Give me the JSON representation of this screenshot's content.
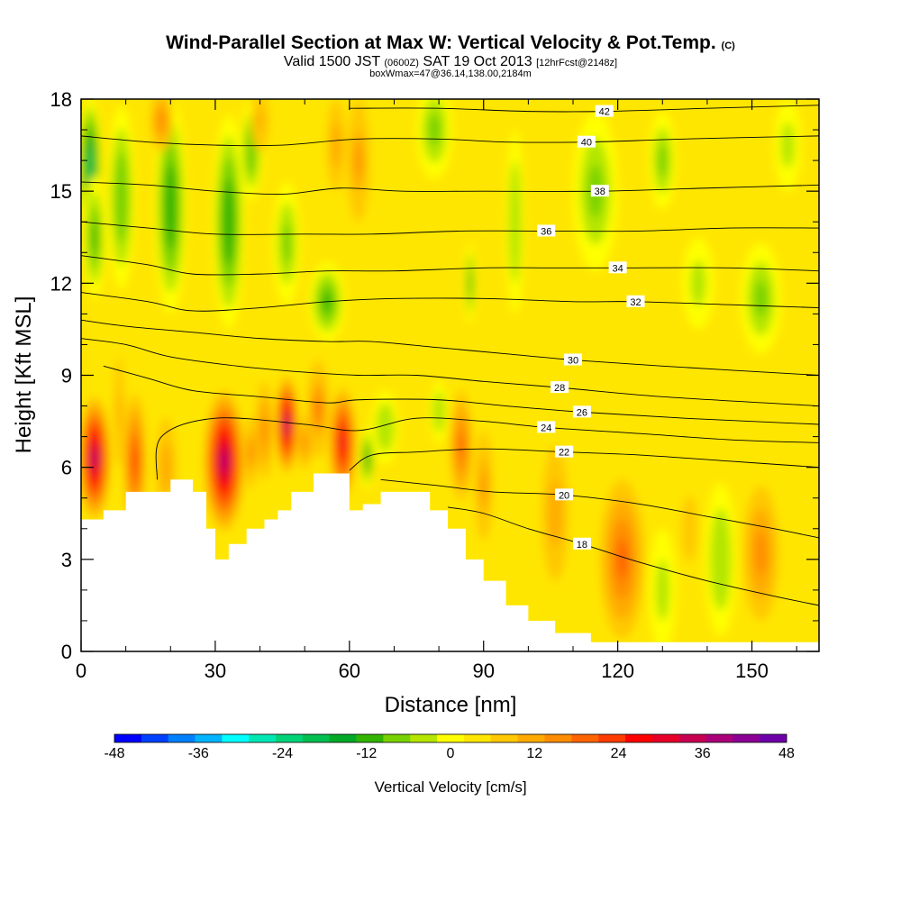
{
  "title": {
    "main": "Wind-Parallel Section at Max W: Vertical Velocity & Pot.Temp.",
    "copyright": "(C)",
    "valid": "Valid 1500 JST",
    "zulu": "(0600Z)",
    "date": "SAT 19 Oct 2013",
    "forecast": "[12hrFcst@2148z]",
    "box": "boxWmax=47@36.14,138.00,2184m"
  },
  "chart_data": {
    "type": "heatmap",
    "xlabel": "Distance [nm]",
    "ylabel": "Height [Kft MSL]",
    "xlim": [
      0,
      165
    ],
    "ylim": [
      0,
      18
    ],
    "xticks": [
      0,
      30,
      60,
      90,
      120,
      150
    ],
    "yticks": [
      0,
      3,
      6,
      9,
      12,
      15,
      18
    ],
    "colorbar": {
      "label": "Vertical Velocity [cm/s]",
      "ticks": [
        -48,
        -36,
        -24,
        -12,
        0,
        12,
        24,
        36,
        48
      ],
      "colors": [
        "#0000ff",
        "#0040ff",
        "#0080ff",
        "#00b4ff",
        "#00ffff",
        "#00e6b4",
        "#00d278",
        "#00be50",
        "#00aa28",
        "#32b400",
        "#78d200",
        "#b4e600",
        "#ffff00",
        "#ffe600",
        "#ffc800",
        "#ffaa00",
        "#ff8c00",
        "#ff6400",
        "#ff3c00",
        "#ff0000",
        "#e60028",
        "#c80050",
        "#aa0078",
        "#8c0096",
        "#6e00aa"
      ]
    },
    "terrain": [
      [
        0,
        4.3
      ],
      [
        5,
        4.6
      ],
      [
        10,
        5.2
      ],
      [
        20,
        5.6
      ],
      [
        25,
        5.2
      ],
      [
        28,
        4.0
      ],
      [
        30,
        3.0
      ],
      [
        33,
        3.5
      ],
      [
        37,
        4.0
      ],
      [
        41,
        4.3
      ],
      [
        44,
        4.6
      ],
      [
        47,
        5.2
      ],
      [
        52,
        5.8
      ],
      [
        56,
        5.8
      ],
      [
        60,
        4.6
      ],
      [
        63,
        4.8
      ],
      [
        67,
        5.2
      ],
      [
        73,
        5.2
      ],
      [
        78,
        4.6
      ],
      [
        82,
        4.0
      ],
      [
        86,
        3.0
      ],
      [
        90,
        2.3
      ],
      [
        95,
        1.5
      ],
      [
        100,
        1.0
      ],
      [
        106,
        0.6
      ],
      [
        114,
        0.3
      ],
      [
        125,
        0.3
      ],
      [
        145,
        0.3
      ],
      [
        160,
        0.3
      ],
      [
        165,
        0.3
      ]
    ],
    "theta_contours": [
      {
        "label": "18",
        "label_at": [
          112,
          3.5
        ],
        "points": [
          [
            82,
            4.7
          ],
          [
            90,
            4.5
          ],
          [
            100,
            4.0
          ],
          [
            112,
            3.5
          ],
          [
            125,
            2.9
          ],
          [
            140,
            2.3
          ],
          [
            155,
            1.8
          ],
          [
            165,
            1.5
          ]
        ]
      },
      {
        "label": "20",
        "label_at": [
          108,
          5.1
        ],
        "points": [
          [
            67,
            5.6
          ],
          [
            80,
            5.4
          ],
          [
            92,
            5.2
          ],
          [
            108,
            5.1
          ],
          [
            125,
            4.8
          ],
          [
            140,
            4.4
          ],
          [
            155,
            4.0
          ],
          [
            165,
            3.7
          ]
        ]
      },
      {
        "label": "22",
        "label_at": [
          108,
          6.5
        ],
        "points": [
          [
            60,
            5.9
          ],
          [
            65,
            6.4
          ],
          [
            75,
            6.5
          ],
          [
            90,
            6.6
          ],
          [
            108,
            6.5
          ],
          [
            125,
            6.4
          ],
          [
            145,
            6.2
          ],
          [
            165,
            6.0
          ]
        ]
      },
      {
        "label": "24",
        "label_at": [
          104,
          7.3
        ],
        "points": [
          [
            17,
            5.6
          ],
          [
            18,
            7.0
          ],
          [
            30,
            7.6
          ],
          [
            50,
            7.4
          ],
          [
            62,
            7.2
          ],
          [
            75,
            7.6
          ],
          [
            90,
            7.5
          ],
          [
            104,
            7.3
          ],
          [
            125,
            7.1
          ],
          [
            145,
            6.9
          ],
          [
            165,
            6.8
          ]
        ]
      },
      {
        "label": "26",
        "label_at": [
          112,
          7.8
        ],
        "points": [
          [
            5,
            9.3
          ],
          [
            15,
            8.9
          ],
          [
            25,
            8.5
          ],
          [
            40,
            8.3
          ],
          [
            55,
            8.1
          ],
          [
            62,
            8.2
          ],
          [
            80,
            8.2
          ],
          [
            95,
            8.0
          ],
          [
            112,
            7.8
          ],
          [
            135,
            7.6
          ],
          [
            165,
            7.4
          ]
        ]
      },
      {
        "label": "28",
        "label_at": [
          107,
          8.6
        ],
        "points": [
          [
            0,
            10.2
          ],
          [
            10,
            10.0
          ],
          [
            20,
            9.6
          ],
          [
            35,
            9.3
          ],
          [
            50,
            9.1
          ],
          [
            62,
            9.0
          ],
          [
            75,
            9.0
          ],
          [
            90,
            8.8
          ],
          [
            107,
            8.6
          ],
          [
            130,
            8.3
          ],
          [
            165,
            8.0
          ]
        ]
      },
      {
        "label": "30",
        "label_at": [
          110,
          9.5
        ],
        "points": [
          [
            0,
            10.8
          ],
          [
            10,
            10.6
          ],
          [
            25,
            10.4
          ],
          [
            40,
            10.2
          ],
          [
            55,
            10.1
          ],
          [
            65,
            10.1
          ],
          [
            80,
            9.9
          ],
          [
            95,
            9.7
          ],
          [
            110,
            9.5
          ],
          [
            130,
            9.3
          ],
          [
            165,
            9.0
          ]
        ]
      },
      {
        "label": "32",
        "label_at": [
          124,
          11.4
        ],
        "points": [
          [
            0,
            11.7
          ],
          [
            15,
            11.4
          ],
          [
            25,
            11.1
          ],
          [
            40,
            11.2
          ],
          [
            55,
            11.4
          ],
          [
            70,
            11.5
          ],
          [
            90,
            11.5
          ],
          [
            110,
            11.4
          ],
          [
            124,
            11.4
          ],
          [
            145,
            11.3
          ],
          [
            165,
            11.2
          ]
        ]
      },
      {
        "label": "34",
        "label_at": [
          120,
          12.5
        ],
        "points": [
          [
            0,
            12.9
          ],
          [
            15,
            12.6
          ],
          [
            25,
            12.3
          ],
          [
            40,
            12.3
          ],
          [
            55,
            12.4
          ],
          [
            70,
            12.4
          ],
          [
            90,
            12.5
          ],
          [
            105,
            12.5
          ],
          [
            120,
            12.5
          ],
          [
            145,
            12.5
          ],
          [
            165,
            12.4
          ]
        ]
      },
      {
        "label": "36",
        "label_at": [
          104,
          13.7
        ],
        "points": [
          [
            0,
            14.0
          ],
          [
            15,
            13.8
          ],
          [
            30,
            13.6
          ],
          [
            50,
            13.6
          ],
          [
            65,
            13.6
          ],
          [
            85,
            13.7
          ],
          [
            104,
            13.7
          ],
          [
            125,
            13.7
          ],
          [
            145,
            13.8
          ],
          [
            165,
            13.8
          ]
        ]
      },
      {
        "label": "38",
        "label_at": [
          116,
          15.0
        ],
        "points": [
          [
            0,
            15.3
          ],
          [
            15,
            15.2
          ],
          [
            30,
            15.0
          ],
          [
            45,
            14.9
          ],
          [
            58,
            15.1
          ],
          [
            72,
            15.0
          ],
          [
            90,
            15.0
          ],
          [
            116,
            15.0
          ],
          [
            140,
            15.1
          ],
          [
            165,
            15.2
          ]
        ]
      },
      {
        "label": "40",
        "label_at": [
          113,
          16.6
        ],
        "points": [
          [
            0,
            16.8
          ],
          [
            15,
            16.6
          ],
          [
            30,
            16.5
          ],
          [
            45,
            16.5
          ],
          [
            62,
            16.7
          ],
          [
            80,
            16.7
          ],
          [
            95,
            16.6
          ],
          [
            113,
            16.6
          ],
          [
            135,
            16.7
          ],
          [
            165,
            16.8
          ]
        ]
      },
      {
        "label": "42",
        "label_at": [
          117,
          17.6
        ],
        "points": [
          [
            60,
            17.7
          ],
          [
            80,
            17.7
          ],
          [
            100,
            17.6
          ],
          [
            117,
            17.6
          ],
          [
            140,
            17.7
          ],
          [
            165,
            17.8
          ]
        ]
      }
    ],
    "w_cells": [
      {
        "cx": 3,
        "cy": 6.3,
        "rx": 3.5,
        "ry": 2.0,
        "w": 38
      },
      {
        "cx": 8.5,
        "cy": 7.8,
        "rx": 1.2,
        "ry": 1.8,
        "w": 12
      },
      {
        "cx": 12,
        "cy": 6.2,
        "rx": 2.5,
        "ry": 2.2,
        "w": 22
      },
      {
        "cx": 19,
        "cy": 6.0,
        "rx": 2.3,
        "ry": 1.6,
        "w": 10
      },
      {
        "cx": 32,
        "cy": 6.2,
        "rx": 4.5,
        "ry": 2.3,
        "w": 38
      },
      {
        "cx": 38,
        "cy": 6.5,
        "rx": 1.4,
        "ry": 1.2,
        "w": 20
      },
      {
        "cx": 41,
        "cy": 7.2,
        "rx": 2.0,
        "ry": 1.6,
        "w": 14
      },
      {
        "cx": 46,
        "cy": 7.4,
        "rx": 2.5,
        "ry": 1.6,
        "w": 38
      },
      {
        "cx": 50,
        "cy": 6.8,
        "rx": 1.5,
        "ry": 0.9,
        "w": 14
      },
      {
        "cx": 53,
        "cy": 7.9,
        "rx": 2.5,
        "ry": 1.6,
        "w": 20
      },
      {
        "cx": 58.5,
        "cy": 6.8,
        "rx": 3.0,
        "ry": 1.8,
        "w": 30
      },
      {
        "cx": 85,
        "cy": 6.7,
        "rx": 2.5,
        "ry": 1.8,
        "w": 18
      },
      {
        "cx": 90,
        "cy": 5.4,
        "rx": 2.0,
        "ry": 1.8,
        "w": 16
      },
      {
        "cx": 106,
        "cy": 4.5,
        "rx": 3.0,
        "ry": 2.2,
        "w": 10
      },
      {
        "cx": 121,
        "cy": 3.0,
        "rx": 5.0,
        "ry": 2.6,
        "w": 18
      },
      {
        "cx": 136,
        "cy": 4.0,
        "rx": 3.5,
        "ry": 2.2,
        "w": 8
      },
      {
        "cx": 152,
        "cy": 3.2,
        "rx": 4.0,
        "ry": 2.2,
        "w": 14
      },
      {
        "cx": 2,
        "cy": 15.8,
        "rx": 2.5,
        "ry": 2.3,
        "w": -22
      },
      {
        "cx": 3,
        "cy": 13.5,
        "rx": 2.5,
        "ry": 2.0,
        "w": -12
      },
      {
        "cx": 9,
        "cy": 14.8,
        "rx": 3.0,
        "ry": 3.0,
        "w": -10
      },
      {
        "cx": 20,
        "cy": 14.5,
        "rx": 3.5,
        "ry": 3.5,
        "w": -14
      },
      {
        "cx": 33,
        "cy": 14.0,
        "rx": 3.5,
        "ry": 3.5,
        "w": -14
      },
      {
        "cx": 38,
        "cy": 16.3,
        "rx": 2.5,
        "ry": 1.6,
        "w": -10
      },
      {
        "cx": 55,
        "cy": 11.4,
        "rx": 4.0,
        "ry": 1.3,
        "w": -12
      },
      {
        "cx": 46,
        "cy": 13.3,
        "rx": 3.0,
        "ry": 2.0,
        "w": -8
      },
      {
        "cx": 64,
        "cy": 6.3,
        "rx": 1.5,
        "ry": 1.0,
        "w": -14
      },
      {
        "cx": 68,
        "cy": 7.3,
        "rx": 3.0,
        "ry": 1.2,
        "w": -6
      },
      {
        "cx": 87,
        "cy": 12.0,
        "rx": 1.1,
        "ry": 1.3,
        "w": -12
      },
      {
        "cx": 79,
        "cy": 17.0,
        "rx": 4.0,
        "ry": 1.6,
        "w": -8
      },
      {
        "cx": 97,
        "cy": 14.0,
        "rx": 2.0,
        "ry": 3.0,
        "w": -6
      },
      {
        "cx": 115,
        "cy": 15.0,
        "rx": 5.0,
        "ry": 2.6,
        "w": -7
      },
      {
        "cx": 130,
        "cy": 16.0,
        "rx": 3.0,
        "ry": 1.6,
        "w": -7
      },
      {
        "cx": 138,
        "cy": 12.0,
        "rx": 3.5,
        "ry": 1.5,
        "w": -4
      },
      {
        "cx": 152,
        "cy": 11.5,
        "rx": 4.5,
        "ry": 1.8,
        "w": -9
      },
      {
        "cx": 158,
        "cy": 16.5,
        "rx": 3.0,
        "ry": 1.5,
        "w": -5
      },
      {
        "cx": 95,
        "cy": 8.3,
        "rx": 8.0,
        "ry": 1.0,
        "w": 4
      },
      {
        "cx": 62,
        "cy": 16.0,
        "rx": 2.5,
        "ry": 2.0,
        "w": 16
      },
      {
        "cx": 57,
        "cy": 16.5,
        "rx": 2.0,
        "ry": 1.5,
        "w": 10
      },
      {
        "cx": 18,
        "cy": 17.3,
        "rx": 2.5,
        "ry": 1.0,
        "w": 14
      },
      {
        "cx": 40,
        "cy": 17.3,
        "rx": 2.0,
        "ry": 1.0,
        "w": 12
      },
      {
        "cx": 80,
        "cy": 7.8,
        "rx": 2.0,
        "ry": 1.0,
        "w": -6
      },
      {
        "cx": 143,
        "cy": 3.0,
        "rx": 3.5,
        "ry": 2.5,
        "w": -6
      },
      {
        "cx": 130,
        "cy": 2.0,
        "rx": 3.0,
        "ry": 2.0,
        "w": -4
      }
    ],
    "background_w": 3
  }
}
